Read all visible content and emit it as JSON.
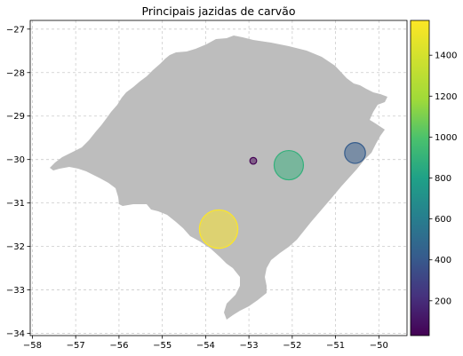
{
  "chart_data": {
    "type": "scatter",
    "title": "Principais jazidas de carvão",
    "xlabel": "",
    "ylabel": "",
    "xlim": [
      -58.05,
      -49.35
    ],
    "ylim": [
      -34.05,
      -26.8
    ],
    "x_ticks": [
      -58,
      -57,
      -56,
      -55,
      -54,
      -53,
      -52,
      -51,
      -50
    ],
    "y_ticks": [
      -34,
      -33,
      -32,
      -31,
      -30,
      -29,
      -28,
      -27
    ],
    "x_tick_labels": [
      "−58",
      "−57",
      "−56",
      "−55",
      "−54",
      "−53",
      "−52",
      "−51",
      "−50"
    ],
    "y_tick_labels": [
      "−34",
      "−33",
      "−32",
      "−31",
      "−30",
      "−29",
      "−28",
      "−27"
    ],
    "grid": true,
    "map_region_color": "#bdbdbd",
    "colormap": "viridis",
    "point_alpha": 0.5,
    "colorbar": {
      "range": [
        30,
        1570
      ],
      "ticks": [
        200,
        400,
        600,
        800,
        1000,
        1200,
        1400
      ],
      "tick_labels": [
        "200",
        "400",
        "600",
        "800",
        "1000",
        "1200",
        "1400"
      ]
    },
    "points": [
      {
        "x": -53.7,
        "y": -31.6,
        "value": 1570
      },
      {
        "x": -52.08,
        "y": -30.13,
        "value": 890
      },
      {
        "x": -50.55,
        "y": -29.85,
        "value": 420
      },
      {
        "x": -52.9,
        "y": -30.03,
        "value": 30
      }
    ]
  }
}
